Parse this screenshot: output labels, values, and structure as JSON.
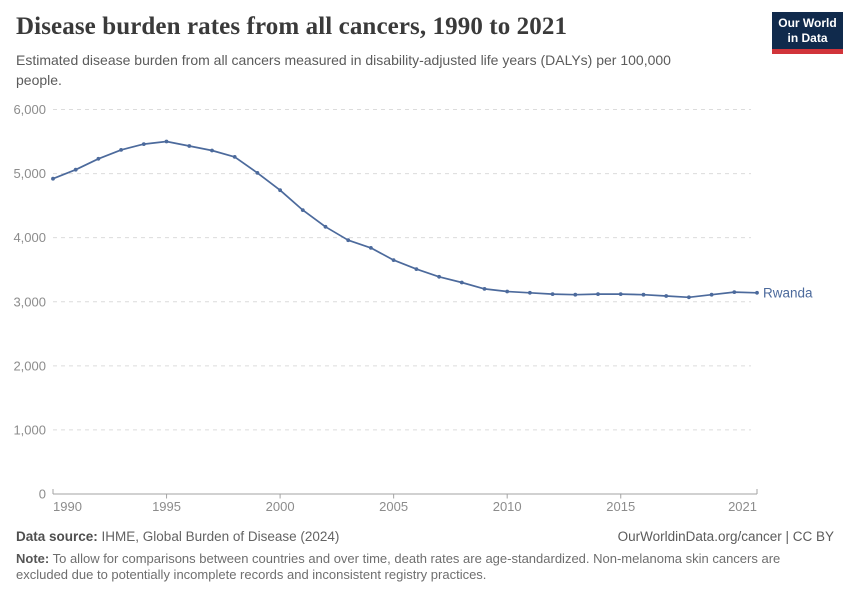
{
  "header": {
    "title": "Disease burden rates from all cancers, 1990 to 2021",
    "subtitle": "Estimated disease burden from all cancers measured in disability-adjusted life years (DALYs) per 100,000 people.",
    "logo": {
      "line1": "Our World",
      "line2": "in Data",
      "bg_color": "#102a4c",
      "bar_color": "#d1343a"
    }
  },
  "chart_data": {
    "type": "line",
    "title": "Disease burden rates from all cancers, 1990 to 2021",
    "x": [
      1990,
      1991,
      1992,
      1993,
      1994,
      1995,
      1996,
      1997,
      1998,
      1999,
      2000,
      2001,
      2002,
      2003,
      2004,
      2005,
      2006,
      2007,
      2008,
      2009,
      2010,
      2011,
      2012,
      2013,
      2014,
      2015,
      2016,
      2017,
      2018,
      2019,
      2020,
      2021
    ],
    "series": [
      {
        "name": "Rwanda",
        "values": [
          4920,
          5060,
          5230,
          5370,
          5460,
          5500,
          5430,
          5360,
          5260,
          5010,
          4740,
          4430,
          4170,
          3960,
          3840,
          3650,
          3510,
          3390,
          3300,
          3200,
          3160,
          3140,
          3120,
          3110,
          3120,
          3120,
          3110,
          3090,
          3070,
          3110,
          3150,
          3140
        ]
      }
    ],
    "xlabel": "",
    "ylabel": "",
    "ylim": [
      0,
      6000
    ],
    "xlim": [
      1990,
      2021
    ],
    "yticks": [
      0,
      1000,
      2000,
      3000,
      4000,
      5000,
      6000
    ],
    "ytick_labels": [
      "0",
      "1,000",
      "2,000",
      "3,000",
      "4,000",
      "5,000",
      "6,000"
    ],
    "xticks": [
      1990,
      1995,
      2000,
      2005,
      2010,
      2015,
      2021
    ],
    "grid": "horizontal-dashed",
    "legend_position": "end-of-line-label",
    "line_color": "#4c6a9c",
    "gridline_color": "#dcdcdc",
    "axis_color": "#a3a3a3",
    "tick_label_color": "#8c8c8c"
  },
  "footer": {
    "data_source_label": "Data source:",
    "data_source_text": "IHME, Global Burden of Disease (2024)",
    "attribution": "OurWorldinData.org/cancer | CC BY",
    "note_label": "Note:",
    "note_text": "To allow for comparisons between countries and over time, death rates are age-standardized. Non-melanoma skin cancers are excluded due to potentially incomplete records and inconsistent registry practices."
  }
}
